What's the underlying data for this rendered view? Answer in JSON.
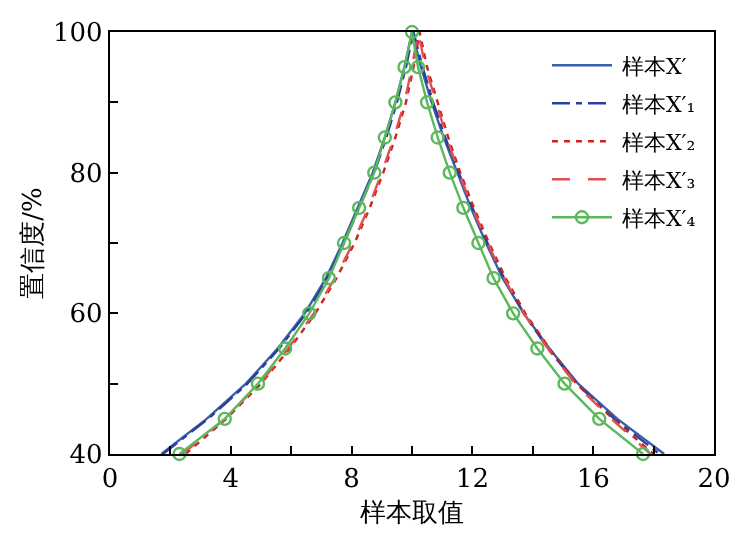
{
  "chart_data": {
    "type": "line",
    "xlabel": "样本取值",
    "ylabel": "置信度/%",
    "xlim": [
      0,
      20
    ],
    "ylim": [
      40,
      100
    ],
    "xticks": [
      0,
      {
        "value": 2,
        "label": null
      },
      4,
      {
        "value": 6,
        "label": null
      },
      8,
      {
        "value": 10,
        "label": null
      },
      12,
      {
        "value": 14,
        "label": null
      },
      16,
      {
        "value": 18,
        "label": null
      },
      20
    ],
    "yticks": [
      40,
      {
        "value": 50,
        "label": null
      },
      60,
      {
        "value": 70,
        "label": null
      },
      80,
      {
        "value": 90,
        "label": null
      },
      100
    ],
    "legend": "top right",
    "series": [
      {
        "name": "样本X′",
        "color": "#3a5fa8",
        "line_style": "solid",
        "marker": "none",
        "x": [
          1.7,
          3.2,
          4.5,
          5.55,
          6.45,
          7.15,
          7.7,
          8.2,
          8.7,
          9.1,
          9.45,
          9.75,
          10.0,
          10.3,
          10.65,
          11.05,
          11.5,
          11.95,
          12.45,
          13.0,
          13.7,
          14.55,
          15.5,
          16.8,
          18.35
        ],
        "values": [
          40,
          45,
          50,
          55,
          60,
          65,
          70,
          75,
          80,
          85,
          90,
          95,
          100,
          95,
          90,
          85,
          80,
          75,
          70,
          65,
          60,
          55,
          50,
          45,
          40
        ]
      },
      {
        "name": "样本X′₁",
        "color": "#2a3f9a",
        "line_style": "dashdot",
        "marker": "none",
        "x": [
          1.75,
          3.25,
          4.55,
          5.6,
          6.5,
          7.2,
          7.75,
          8.25,
          8.75,
          9.15,
          9.5,
          9.8,
          10.05,
          10.35,
          10.7,
          11.1,
          11.55,
          12.0,
          12.5,
          13.05,
          13.7,
          14.5,
          15.45,
          16.7,
          18.2
        ],
        "values": [
          40,
          45,
          50,
          55,
          60,
          65,
          70,
          75,
          80,
          85,
          90,
          95,
          100,
          95,
          90,
          85,
          80,
          75,
          70,
          65,
          60,
          55,
          50,
          45,
          40
        ]
      },
      {
        "name": "样本X′₂",
        "color": "#d02020",
        "line_style": "dotted",
        "marker": "none",
        "x": [
          2.5,
          3.85,
          5.0,
          5.95,
          6.8,
          7.5,
          8.1,
          8.6,
          9.05,
          9.45,
          9.8,
          10.05,
          10.25,
          10.5,
          10.85,
          11.2,
          11.6,
          12.05,
          12.55,
          13.1,
          13.75,
          14.55,
          15.45,
          16.65,
          18.0
        ],
        "values": [
          40,
          45,
          50,
          55,
          60,
          65,
          70,
          75,
          80,
          85,
          90,
          95,
          100,
          95,
          90,
          85,
          80,
          75,
          70,
          65,
          60,
          55,
          50,
          45,
          40
        ]
      },
      {
        "name": "样本X′₃",
        "color": "#e05050",
        "line_style": "dashed",
        "marker": "none",
        "x": [
          2.4,
          3.8,
          4.95,
          5.9,
          6.75,
          7.45,
          8.05,
          8.55,
          9.0,
          9.4,
          9.75,
          10.0,
          10.2,
          10.45,
          10.8,
          11.15,
          11.55,
          12.0,
          12.5,
          13.05,
          13.7,
          14.5,
          15.4,
          16.6,
          17.9
        ],
        "values": [
          40,
          45,
          50,
          55,
          60,
          65,
          70,
          75,
          80,
          85,
          90,
          95,
          100,
          95,
          90,
          85,
          80,
          75,
          70,
          65,
          60,
          55,
          50,
          45,
          40
        ]
      },
      {
        "name": "样本X′₄",
        "color": "#5cb85c",
        "line_style": "solid",
        "marker": "circle",
        "x": [
          2.3,
          3.8,
          4.9,
          5.8,
          6.6,
          7.25,
          7.75,
          8.25,
          8.75,
          9.1,
          9.45,
          9.75,
          10.0,
          10.2,
          10.5,
          10.85,
          11.25,
          11.7,
          12.2,
          12.7,
          13.35,
          14.15,
          15.05,
          16.2,
          17.65
        ],
        "values": [
          40,
          45,
          50,
          55,
          60,
          65,
          70,
          75,
          80,
          85,
          90,
          95,
          100,
          95,
          90,
          85,
          80,
          75,
          70,
          65,
          60,
          55,
          50,
          45,
          40
        ]
      }
    ]
  }
}
